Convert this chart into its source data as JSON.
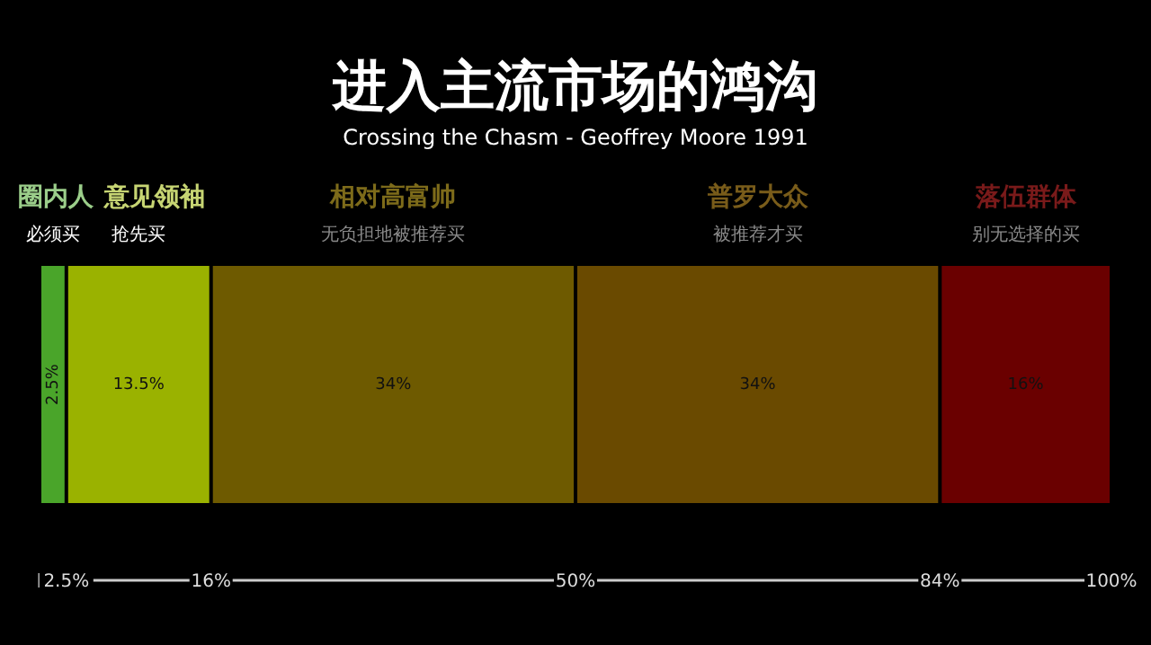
{
  "chart_data": {
    "type": "bar",
    "orientation": "horizontal",
    "stacked": true,
    "title": "进入主流市场的鸿沟",
    "subtitle": "Crossing the Chasm - Geoffrey Moore 1991",
    "categories": [
      null
    ],
    "series": [
      {
        "name": "圈内人",
        "color": "#4aa52a",
        "values": [
          2.5
        ],
        "value_labels": [
          "2.5%"
        ]
      },
      {
        "name": "意见领袖",
        "color": "#9ab200",
        "values": [
          13.5
        ],
        "value_labels": [
          "13.5%"
        ]
      },
      {
        "name": "相对高富帅",
        "color": "#6e5a00",
        "values": [
          34
        ],
        "value_labels": [
          "34%"
        ]
      },
      {
        "name": "普罗大众",
        "color": "#6a4a00",
        "values": [
          34
        ],
        "value_labels": [
          "34%"
        ]
      },
      {
        "name": "落伍群体",
        "color": "#6a0000",
        "values": [
          16
        ],
        "value_labels": [
          "16%"
        ]
      }
    ],
    "xlim": [
      0,
      100
    ],
    "xticks": [
      {
        "value": 2.5,
        "label": "2.5%"
      },
      {
        "value": 16,
        "label": "16%"
      },
      {
        "value": 50,
        "label": "50%"
      },
      {
        "value": 84,
        "label": "84%"
      },
      {
        "value": 100,
        "label": "100%"
      }
    ],
    "annotations": [
      "必须买",
      "抢先买",
      "无负担地被推荐买",
      "被推荐才买",
      "别无选择的买"
    ]
  }
}
